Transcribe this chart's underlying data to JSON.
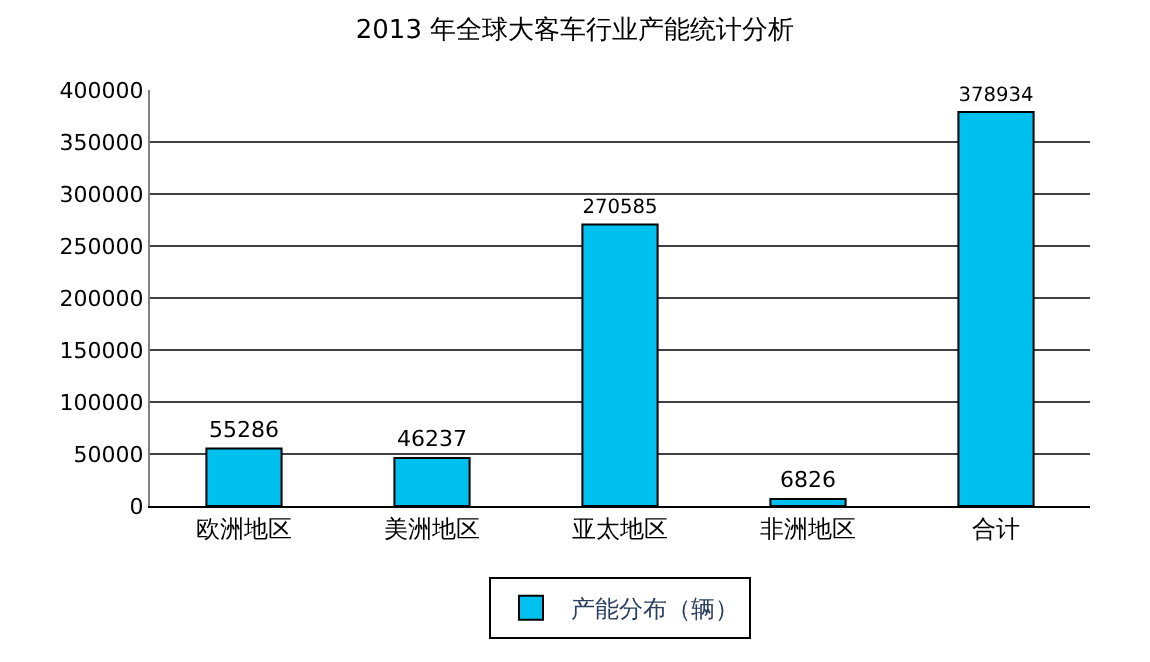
{
  "chart_data": {
    "type": "bar",
    "title": "2013 年全球大客车行业产能统计分析",
    "categories": [
      "欧洲地区",
      "美洲地区",
      "亚太地区",
      "非洲地区",
      "合计"
    ],
    "series": [
      {
        "name": "产能分布（辆）",
        "color": "#00c0f0",
        "values": [
          55286,
          46237,
          270585,
          6826,
          378934
        ]
      }
    ],
    "ylim": [
      0,
      400000
    ],
    "yticks": [
      0,
      50000,
      100000,
      150000,
      200000,
      250000,
      300000,
      350000,
      400000
    ],
    "grid": "y",
    "legend": "bottom",
    "data_labels": true
  }
}
